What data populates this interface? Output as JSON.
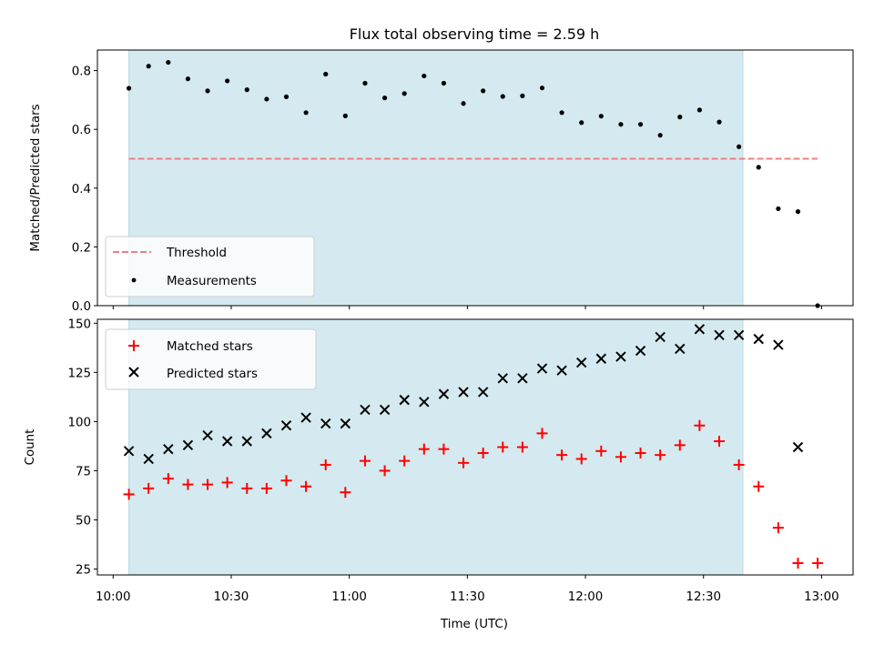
{
  "chart_data": [
    {
      "type": "scatter",
      "title": "Flux total observing time = 2.59 h",
      "ylabel": "Matched/Predicted stars",
      "xlim": [
        "09:56",
        "13:08"
      ],
      "ylim": [
        0,
        0.87
      ],
      "yticks": [
        0.0,
        0.2,
        0.4,
        0.6,
        0.8
      ],
      "ytick_labels": [
        "0.0",
        "0.2",
        "0.4",
        "0.6",
        "0.8"
      ],
      "shaded_interval": {
        "start": "10:04",
        "end": "12:40",
        "color": "#d4eaf0"
      },
      "legend": {
        "position": "lower-left",
        "entries": [
          "Threshold",
          "Measurements"
        ]
      },
      "series": [
        {
          "name": "Threshold",
          "kind": "dashed-line",
          "color": "#f08080",
          "x": [
            "10:04",
            "12:59"
          ],
          "y": [
            0.5,
            0.5
          ]
        },
        {
          "name": "Measurements",
          "kind": "dot",
          "color": "#000000",
          "x": [
            "10:04",
            "10:09",
            "10:14",
            "10:19",
            "10:24",
            "10:29",
            "10:34",
            "10:39",
            "10:44",
            "10:49",
            "10:54",
            "10:59",
            "11:04",
            "11:09",
            "11:14",
            "11:19",
            "11:24",
            "11:29",
            "11:34",
            "11:39",
            "11:44",
            "11:49",
            "11:54",
            "11:59",
            "12:04",
            "12:09",
            "12:14",
            "12:19",
            "12:24",
            "12:29",
            "12:34",
            "12:39",
            "12:44",
            "12:49",
            "12:54",
            "12:59"
          ],
          "y": [
            0.74,
            0.815,
            0.828,
            0.772,
            0.731,
            0.765,
            0.735,
            0.703,
            0.711,
            0.657,
            0.788,
            0.646,
            0.757,
            0.707,
            0.722,
            0.782,
            0.757,
            0.688,
            0.731,
            0.712,
            0.714,
            0.741,
            0.657,
            0.623,
            0.645,
            0.617,
            0.617,
            0.58,
            0.642,
            0.666,
            0.625,
            0.541,
            0.471,
            0.33,
            0.32,
            0.0
          ]
        }
      ]
    },
    {
      "type": "scatter",
      "xlabel": "Time (UTC)",
      "ylabel": "Count",
      "xlim": [
        "09:56",
        "13:08"
      ],
      "ylim": [
        22,
        152
      ],
      "xticks": [
        "10:00",
        "10:30",
        "11:00",
        "11:30",
        "12:00",
        "12:30",
        "13:00"
      ],
      "yticks": [
        25,
        50,
        75,
        100,
        125,
        150
      ],
      "shaded_interval": {
        "start": "10:04",
        "end": "12:40",
        "color": "#d4eaf0"
      },
      "legend": {
        "position": "upper-left",
        "entries": [
          "Matched stars",
          "Predicted stars"
        ]
      },
      "series": [
        {
          "name": "Matched stars",
          "marker": "plus",
          "color": "#ff0000",
          "x": [
            "10:04",
            "10:09",
            "10:14",
            "10:19",
            "10:24",
            "10:29",
            "10:34",
            "10:39",
            "10:44",
            "10:49",
            "10:54",
            "10:59",
            "11:04",
            "11:09",
            "11:14",
            "11:19",
            "11:24",
            "11:29",
            "11:34",
            "11:39",
            "11:44",
            "11:49",
            "11:54",
            "11:59",
            "12:04",
            "12:09",
            "12:14",
            "12:19",
            "12:24",
            "12:29",
            "12:34",
            "12:39",
            "12:44",
            "12:49",
            "12:54",
            "12:59"
          ],
          "y": [
            63,
            66,
            71,
            68,
            68,
            69,
            66,
            66,
            70,
            67,
            78,
            64,
            80,
            75,
            80,
            86,
            86,
            79,
            84,
            87,
            87,
            94,
            83,
            81,
            85,
            82,
            84,
            83,
            88,
            98,
            90,
            78,
            67,
            46,
            28,
            28
          ]
        },
        {
          "name": "Predicted stars",
          "marker": "x",
          "color": "#000000",
          "x": [
            "10:04",
            "10:09",
            "10:14",
            "10:19",
            "10:24",
            "10:29",
            "10:34",
            "10:39",
            "10:44",
            "10:49",
            "10:54",
            "10:59",
            "11:04",
            "11:09",
            "11:14",
            "11:19",
            "11:24",
            "11:29",
            "11:34",
            "11:39",
            "11:44",
            "11:49",
            "11:54",
            "11:59",
            "12:04",
            "12:09",
            "12:14",
            "12:19",
            "12:24",
            "12:29",
            "12:34",
            "12:39",
            "12:44",
            "12:49",
            "12:54"
          ],
          "y": [
            85,
            81,
            86,
            88,
            93,
            90,
            90,
            94,
            98,
            102,
            99,
            99,
            106,
            106,
            111,
            110,
            114,
            115,
            115,
            122,
            122,
            127,
            126,
            130,
            132,
            133,
            136,
            143,
            137,
            147,
            144,
            144,
            142,
            139,
            87
          ]
        }
      ]
    }
  ]
}
